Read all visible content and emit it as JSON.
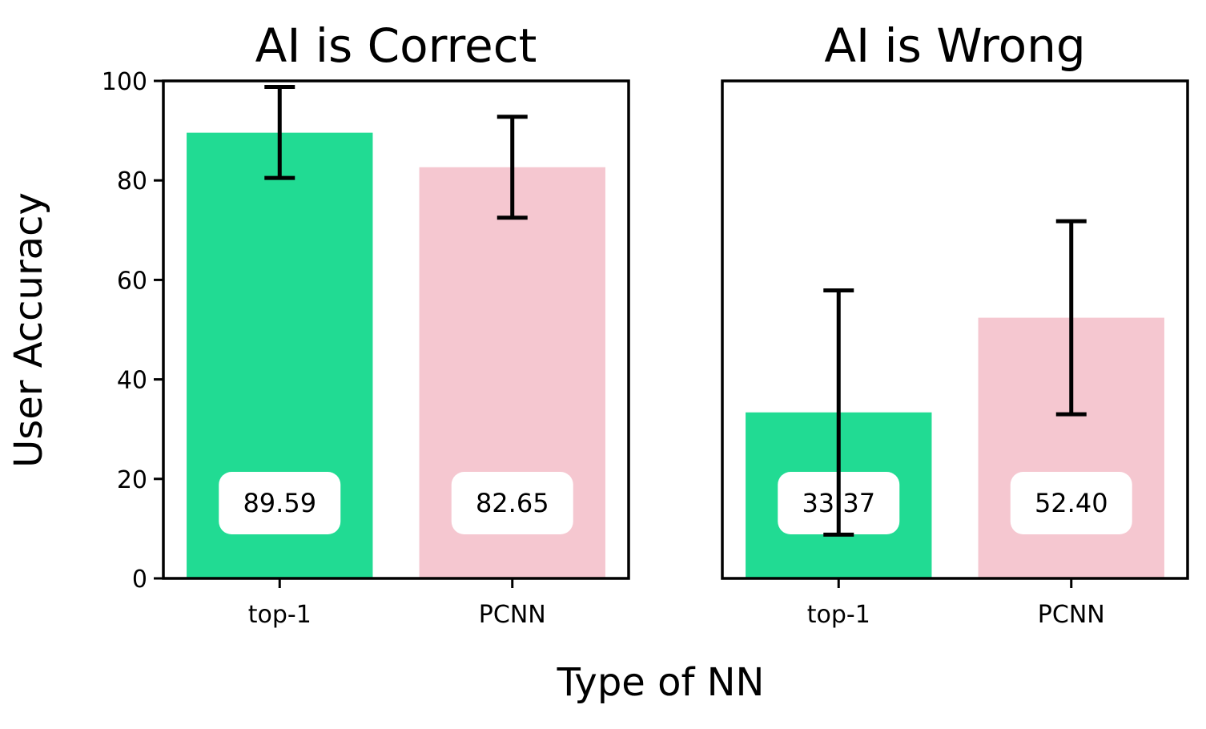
{
  "chart_data": {
    "type": "bar",
    "ylabel": "User Accuracy",
    "xlabel": "Type of NN",
    "ylim": [
      0,
      100
    ],
    "yticks": [
      "0",
      "20",
      "40",
      "60",
      "80",
      "100"
    ],
    "colors": {
      "top-1": "#21db93",
      "PCNN": "#f5c7d0",
      "label_box": "#ffffff",
      "axis": "#000000"
    },
    "panels": [
      {
        "title": "AI is Correct",
        "categories": [
          "top-1",
          "PCNN"
        ],
        "values": [
          89.59,
          82.65
        ],
        "labels": [
          "89.59",
          "82.65"
        ],
        "error_low": [
          80.5,
          72.5
        ],
        "error_high": [
          98.8,
          92.8
        ]
      },
      {
        "title": "AI is Wrong",
        "categories": [
          "top-1",
          "PCNN"
        ],
        "values": [
          33.37,
          52.4
        ],
        "labels": [
          "33.37",
          "52.40"
        ],
        "error_low": [
          8.8,
          33.0
        ],
        "error_high": [
          57.9,
          71.8
        ]
      }
    ]
  }
}
